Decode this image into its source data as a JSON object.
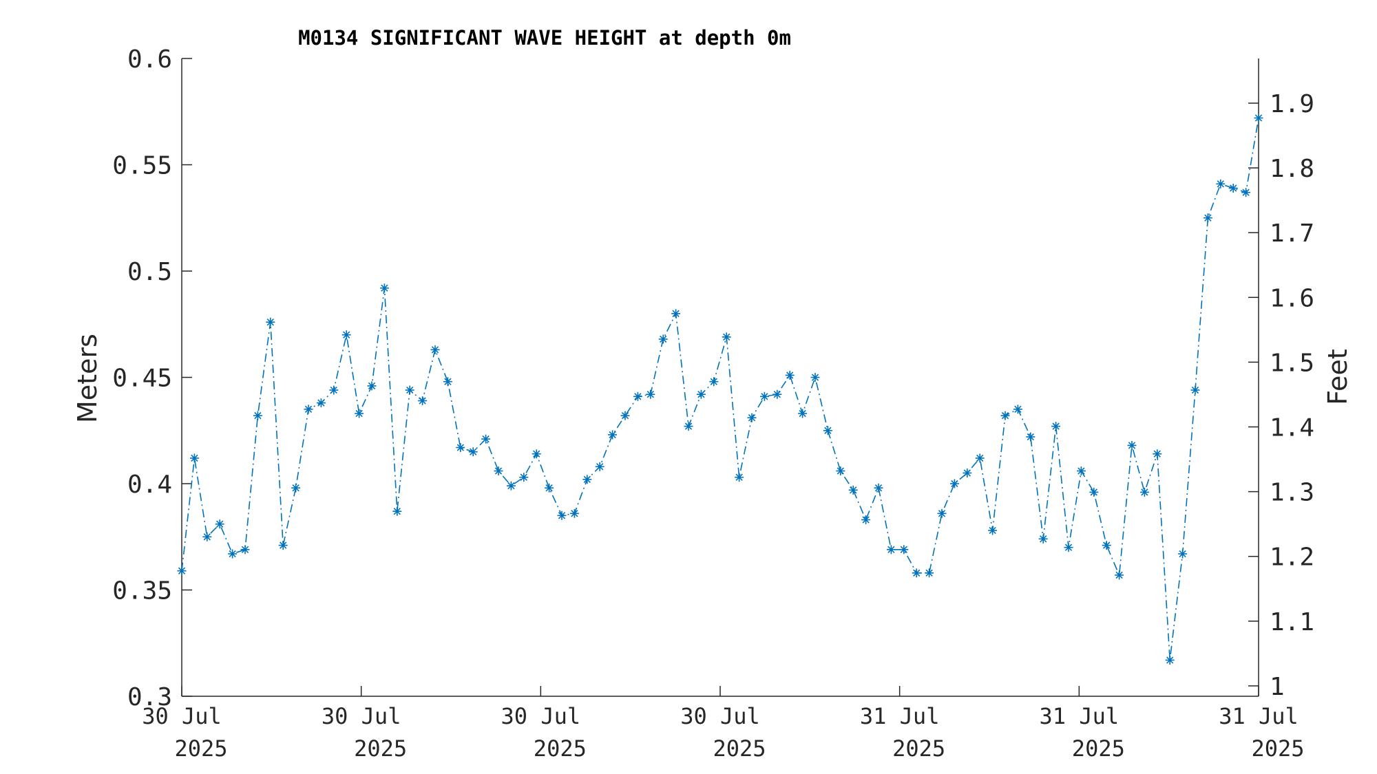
{
  "chart_data": {
    "type": "line",
    "title": "M0134 SIGNIFICANT WAVE HEIGHT at depth 0m",
    "ylabel": "Meters",
    "y2label": "Feet",
    "ylim": [
      0.3,
      0.6
    ],
    "y2lim": [
      0.984,
      1.969
    ],
    "yticks": [
      "0.3",
      "0.35",
      "0.4",
      "0.45",
      "0.5",
      "0.55",
      "0.6"
    ],
    "y2ticks": [
      "1",
      "1.1",
      "1.2",
      "1.3",
      "1.4",
      "1.5",
      "1.6",
      "1.7",
      "1.8",
      "1.9"
    ],
    "xticks": [
      {
        "day": "30 Jul",
        "year": "2025"
      },
      {
        "day": "30 Jul",
        "year": "2025"
      },
      {
        "day": "30 Jul",
        "year": "2025"
      },
      {
        "day": "30 Jul",
        "year": "2025"
      },
      {
        "day": "31 Jul",
        "year": "2025"
      },
      {
        "day": "31 Jul",
        "year": "2025"
      },
      {
        "day": "31 Jul",
        "year": "2025"
      }
    ],
    "grid": false,
    "series": [
      {
        "color": "#0072BD",
        "line_style": "dash-dot",
        "marker": "asterisk",
        "values": [
          0.359,
          0.412,
          0.375,
          0.381,
          0.367,
          0.369,
          0.432,
          0.476,
          0.371,
          0.398,
          0.435,
          0.438,
          0.444,
          0.47,
          0.433,
          0.446,
          0.492,
          0.387,
          0.444,
          0.439,
          0.463,
          0.448,
          0.417,
          0.415,
          0.421,
          0.406,
          0.399,
          0.403,
          0.414,
          0.398,
          0.385,
          0.386,
          0.402,
          0.408,
          0.423,
          0.432,
          0.441,
          0.442,
          0.468,
          0.48,
          0.427,
          0.442,
          0.448,
          0.469,
          0.403,
          0.431,
          0.441,
          0.442,
          0.451,
          0.433,
          0.45,
          0.425,
          0.406,
          0.397,
          0.383,
          0.398,
          0.369,
          0.369,
          0.358,
          0.358,
          0.386,
          0.4,
          0.405,
          0.412,
          0.378,
          0.432,
          0.435,
          0.422,
          0.374,
          0.427,
          0.37,
          0.406,
          0.396,
          0.371,
          0.357,
          0.418,
          0.396,
          0.414,
          0.317,
          0.367,
          0.444,
          0.525,
          0.541,
          0.539,
          0.537,
          0.572
        ]
      }
    ]
  }
}
